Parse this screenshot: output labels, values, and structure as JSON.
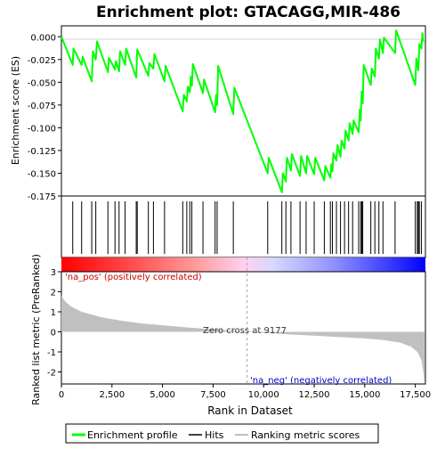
{
  "chart_data": {
    "type": "line",
    "title": "Enrichment plot: GTACAGG,MIR-486",
    "top_panel": {
      "ylabel": "Enrichment score (ES)",
      "ylim": [
        -0.175,
        0.012
      ],
      "yticks": [
        "0.000",
        "-0.025",
        "-0.050",
        "-0.075",
        "-0.100",
        "-0.125",
        "-0.150",
        "-0.175"
      ],
      "ytick_values": [
        0.0,
        -0.025,
        -0.05,
        -0.075,
        -0.1,
        -0.125,
        -0.15,
        -0.175
      ],
      "series": [
        {
          "name": "Enrichment profile",
          "color": "#00ff00",
          "points": [
            [
              0,
              0.0
            ],
            [
              560,
              -0.031
            ],
            [
              600,
              -0.013
            ],
            [
              1000,
              -0.031
            ],
            [
              1050,
              -0.022
            ],
            [
              1500,
              -0.049
            ],
            [
              1560,
              -0.016
            ],
            [
              1700,
              -0.025
            ],
            [
              1760,
              -0.005
            ],
            [
              2300,
              -0.039
            ],
            [
              2350,
              -0.023
            ],
            [
              2650,
              -0.036
            ],
            [
              2700,
              -0.027
            ],
            [
              2850,
              -0.038
            ],
            [
              2900,
              -0.016
            ],
            [
              3150,
              -0.031
            ],
            [
              3200,
              -0.013
            ],
            [
              3700,
              -0.045
            ],
            [
              3750,
              -0.014
            ],
            [
              4300,
              -0.043
            ],
            [
              4350,
              -0.029
            ],
            [
              4550,
              -0.035
            ],
            [
              4600,
              -0.019
            ],
            [
              5100,
              -0.049
            ],
            [
              5150,
              -0.032
            ],
            [
              6000,
              -0.082
            ],
            [
              6050,
              -0.064
            ],
            [
              6200,
              -0.071
            ],
            [
              6250,
              -0.055
            ],
            [
              6350,
              -0.061
            ],
            [
              6400,
              -0.044
            ],
            [
              6450,
              -0.054
            ],
            [
              6500,
              -0.03
            ],
            [
              7000,
              -0.062
            ],
            [
              7050,
              -0.047
            ],
            [
              7600,
              -0.083
            ],
            [
              7650,
              -0.064
            ],
            [
              7700,
              -0.075
            ],
            [
              7750,
              -0.032
            ],
            [
              8500,
              -0.085
            ],
            [
              8550,
              -0.056
            ],
            [
              10200,
              -0.15
            ],
            [
              10250,
              -0.133
            ],
            [
              10900,
              -0.171
            ],
            [
              10950,
              -0.15
            ],
            [
              11100,
              -0.159
            ],
            [
              11150,
              -0.133
            ],
            [
              11350,
              -0.147
            ],
            [
              11400,
              -0.129
            ],
            [
              11800,
              -0.153
            ],
            [
              11850,
              -0.131
            ],
            [
              12100,
              -0.15
            ],
            [
              12150,
              -0.131
            ],
            [
              12500,
              -0.151
            ],
            [
              12550,
              -0.133
            ],
            [
              13000,
              -0.158
            ],
            [
              13050,
              -0.142
            ],
            [
              13300,
              -0.155
            ],
            [
              13350,
              -0.14
            ],
            [
              13400,
              -0.148
            ],
            [
              13450,
              -0.128
            ],
            [
              13600,
              -0.136
            ],
            [
              13650,
              -0.119
            ],
            [
              13800,
              -0.132
            ],
            [
              13850,
              -0.114
            ],
            [
              14000,
              -0.123
            ],
            [
              14050,
              -0.103
            ],
            [
              14200,
              -0.114
            ],
            [
              14250,
              -0.095
            ],
            [
              14400,
              -0.107
            ],
            [
              14450,
              -0.092
            ],
            [
              14700,
              -0.105
            ],
            [
              14750,
              -0.08
            ],
            [
              14800,
              -0.092
            ],
            [
              14850,
              -0.06
            ],
            [
              14900,
              -0.073
            ],
            [
              14950,
              -0.031
            ],
            [
              15300,
              -0.053
            ],
            [
              15350,
              -0.035
            ],
            [
              15500,
              -0.044
            ],
            [
              15550,
              -0.013
            ],
            [
              15700,
              -0.024
            ],
            [
              15750,
              -0.003
            ],
            [
              15900,
              -0.018
            ],
            [
              15950,
              -0.001
            ],
            [
              16500,
              -0.018
            ],
            [
              16550,
              0.007
            ],
            [
              17500,
              -0.053
            ],
            [
              17550,
              -0.024
            ],
            [
              17650,
              -0.037
            ],
            [
              17700,
              -0.008
            ],
            [
              17800,
              -0.013
            ],
            [
              17850,
              0.004
            ],
            [
              17900,
              -0.005
            ]
          ]
        }
      ],
      "hits": [
        560,
        1000,
        1500,
        1700,
        2300,
        2650,
        2850,
        3150,
        3700,
        3750,
        4300,
        4550,
        5100,
        6000,
        6200,
        6350,
        6450,
        7000,
        7600,
        7700,
        8500,
        10200,
        10900,
        11100,
        11350,
        11800,
        12100,
        12500,
        13000,
        13300,
        13400,
        13600,
        13800,
        14000,
        14200,
        14400,
        14700,
        14800,
        14850,
        14900,
        15300,
        15500,
        15700,
        15900,
        16500,
        17500,
        17600,
        17650,
        17700,
        17800
      ]
    },
    "bottom_panel": {
      "ylabel": "Ranked list metric (PreRanked)",
      "xlabel": "Rank in Dataset",
      "ylim": [
        -2.6,
        3.0
      ],
      "yticks": [
        "3",
        "2",
        "1",
        "0",
        "-1",
        "-2"
      ],
      "ytick_values": [
        3,
        2,
        1,
        0,
        -1,
        -2
      ],
      "xticks": [
        "0",
        "2,500",
        "5,000",
        "7,500",
        "10,000",
        "12,500",
        "15,000",
        "17,500"
      ],
      "xtick_values": [
        0,
        2500,
        5000,
        7500,
        10000,
        12500,
        15000,
        17500
      ],
      "xlim": [
        0,
        18000
      ],
      "metric_shape": [
        [
          0,
          1.8
        ],
        [
          200,
          1.5
        ],
        [
          500,
          1.25
        ],
        [
          1000,
          1.0
        ],
        [
          2000,
          0.72
        ],
        [
          3000,
          0.55
        ],
        [
          4000,
          0.42
        ],
        [
          5000,
          0.33
        ],
        [
          6000,
          0.24
        ],
        [
          7000,
          0.16
        ],
        [
          8000,
          0.09
        ],
        [
          9177,
          0.0
        ],
        [
          10000,
          -0.05
        ],
        [
          11000,
          -0.11
        ],
        [
          12000,
          -0.17
        ],
        [
          13000,
          -0.22
        ],
        [
          14000,
          -0.27
        ],
        [
          15000,
          -0.33
        ],
        [
          16000,
          -0.42
        ],
        [
          16800,
          -0.55
        ],
        [
          17300,
          -0.75
        ],
        [
          17600,
          -1.0
        ],
        [
          17800,
          -1.4
        ],
        [
          17900,
          -2.0
        ],
        [
          17950,
          -2.6
        ]
      ],
      "zero_cross_label": "Zero cross at 9177",
      "zero_cross": 9177,
      "pos_label": "'na_pos' (positively correlated)",
      "neg_label": "'na_neg' (negatively correlated)"
    },
    "legend": [
      {
        "label": "Enrichment profile",
        "color": "#00ff00"
      },
      {
        "label": "Hits",
        "color": "#000000"
      },
      {
        "label": "Ranking metric scores",
        "color": "#c0c0c0"
      }
    ],
    "colors": {
      "enrichment_line": "#00ff00",
      "pos_label": "#cc0000",
      "neg_label": "#0000cc"
    }
  }
}
